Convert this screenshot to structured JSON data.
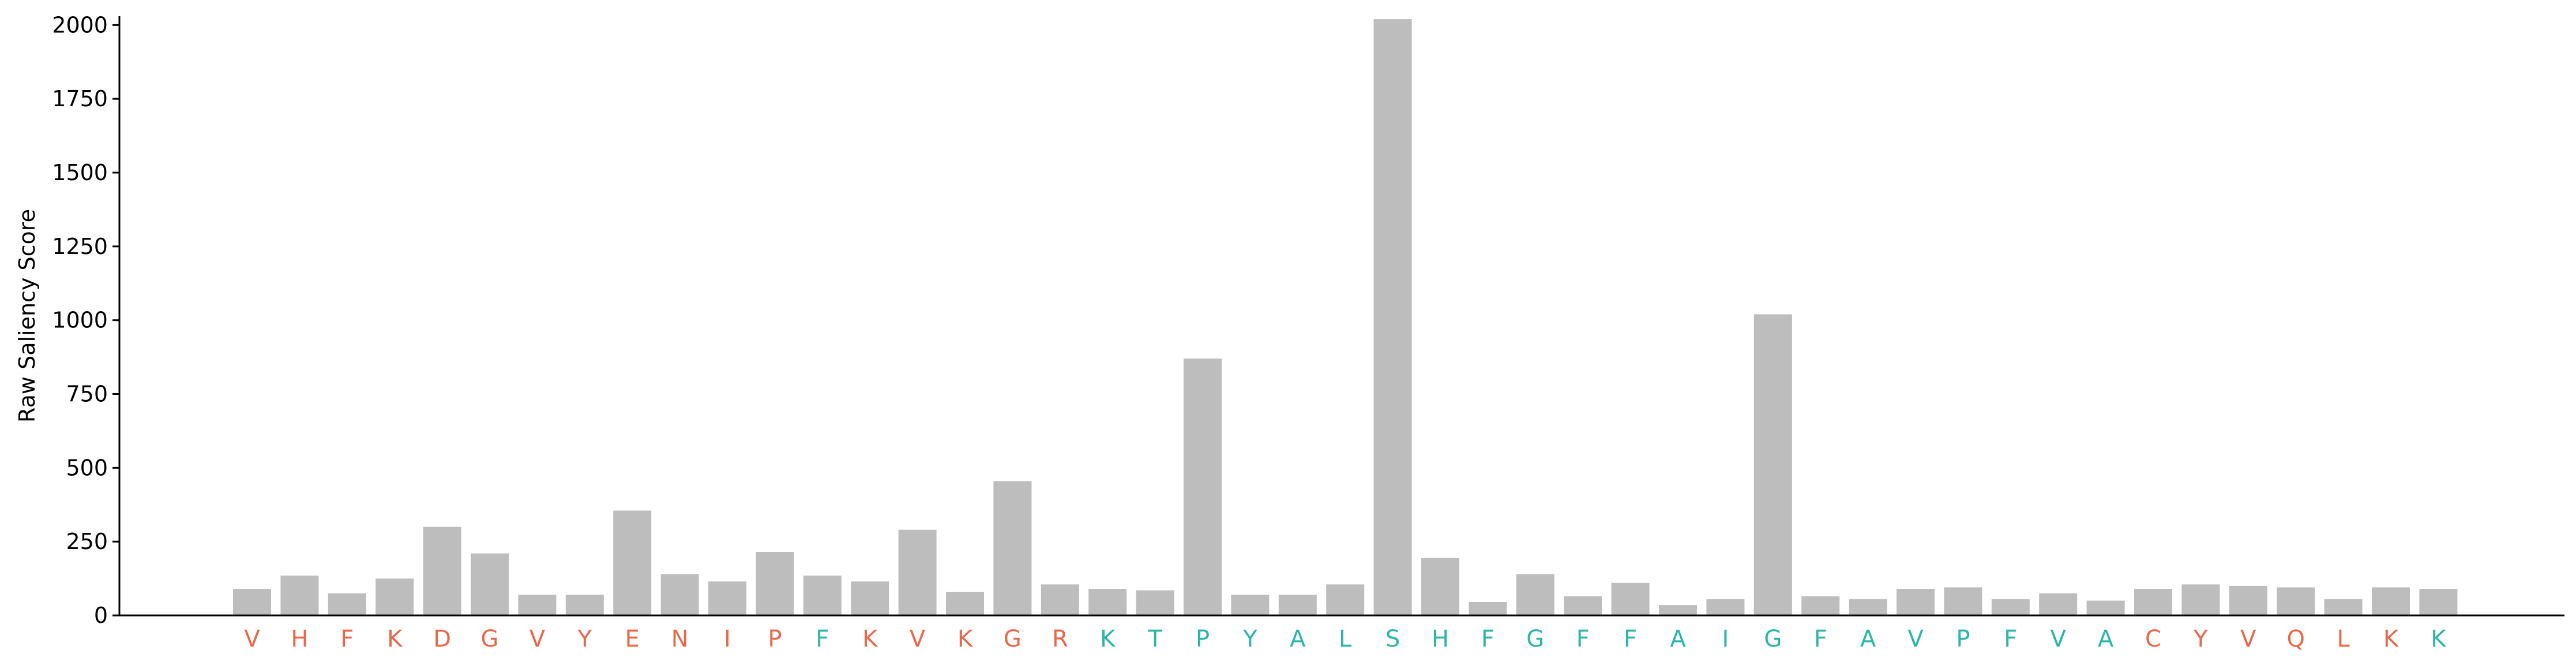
{
  "chart_data": {
    "type": "bar",
    "title": "",
    "xlabel": "",
    "ylabel": "Raw Saliency Score",
    "ylim": [
      0,
      2030
    ],
    "yticks": [
      0,
      250,
      500,
      750,
      1000,
      1250,
      1500,
      1750,
      2000
    ],
    "ytick_labels": [
      "0",
      "250",
      "500",
      "750",
      "1000",
      "1250",
      "1500",
      "1750",
      "2000"
    ],
    "grid": false,
    "legend": "none",
    "bar_color": "#bdbdbd",
    "categories": [
      "V",
      "H",
      "F",
      "K",
      "D",
      "G",
      "V",
      "Y",
      "E",
      "N",
      "I",
      "P",
      "F",
      "K",
      "V",
      "K",
      "G",
      "R",
      "K",
      "T",
      "P",
      "Y",
      "A",
      "L",
      "S",
      "H",
      "F",
      "G",
      "F",
      "F",
      "A",
      "I",
      "G",
      "F",
      "A",
      "V",
      "P",
      "F",
      "V",
      "A",
      "C",
      "Y",
      "V",
      "Q",
      "L",
      "K",
      "K"
    ],
    "category_groups": [
      "a",
      "a",
      "a",
      "a",
      "a",
      "a",
      "a",
      "a",
      "a",
      "a",
      "a",
      "a",
      "b",
      "a",
      "a",
      "a",
      "a",
      "a",
      "b",
      "b",
      "b",
      "b",
      "b",
      "b",
      "b",
      "b",
      "b",
      "b",
      "b",
      "b",
      "b",
      "b",
      "b",
      "b",
      "b",
      "b",
      "b",
      "b",
      "b",
      "b",
      "a",
      "a",
      "a",
      "a",
      "a",
      "a",
      "b"
    ],
    "group_colors": {
      "a": "#e8684a",
      "b": "#2cb5a8"
    },
    "values": [
      90,
      135,
      75,
      125,
      300,
      210,
      70,
      70,
      355,
      140,
      115,
      215,
      135,
      115,
      290,
      80,
      455,
      105,
      90,
      85,
      870,
      70,
      70,
      105,
      2020,
      195,
      45,
      140,
      65,
      110,
      35,
      55,
      1020,
      65,
      55,
      90,
      95,
      55,
      75,
      50,
      90,
      105,
      100,
      95,
      55,
      95,
      90
    ]
  }
}
